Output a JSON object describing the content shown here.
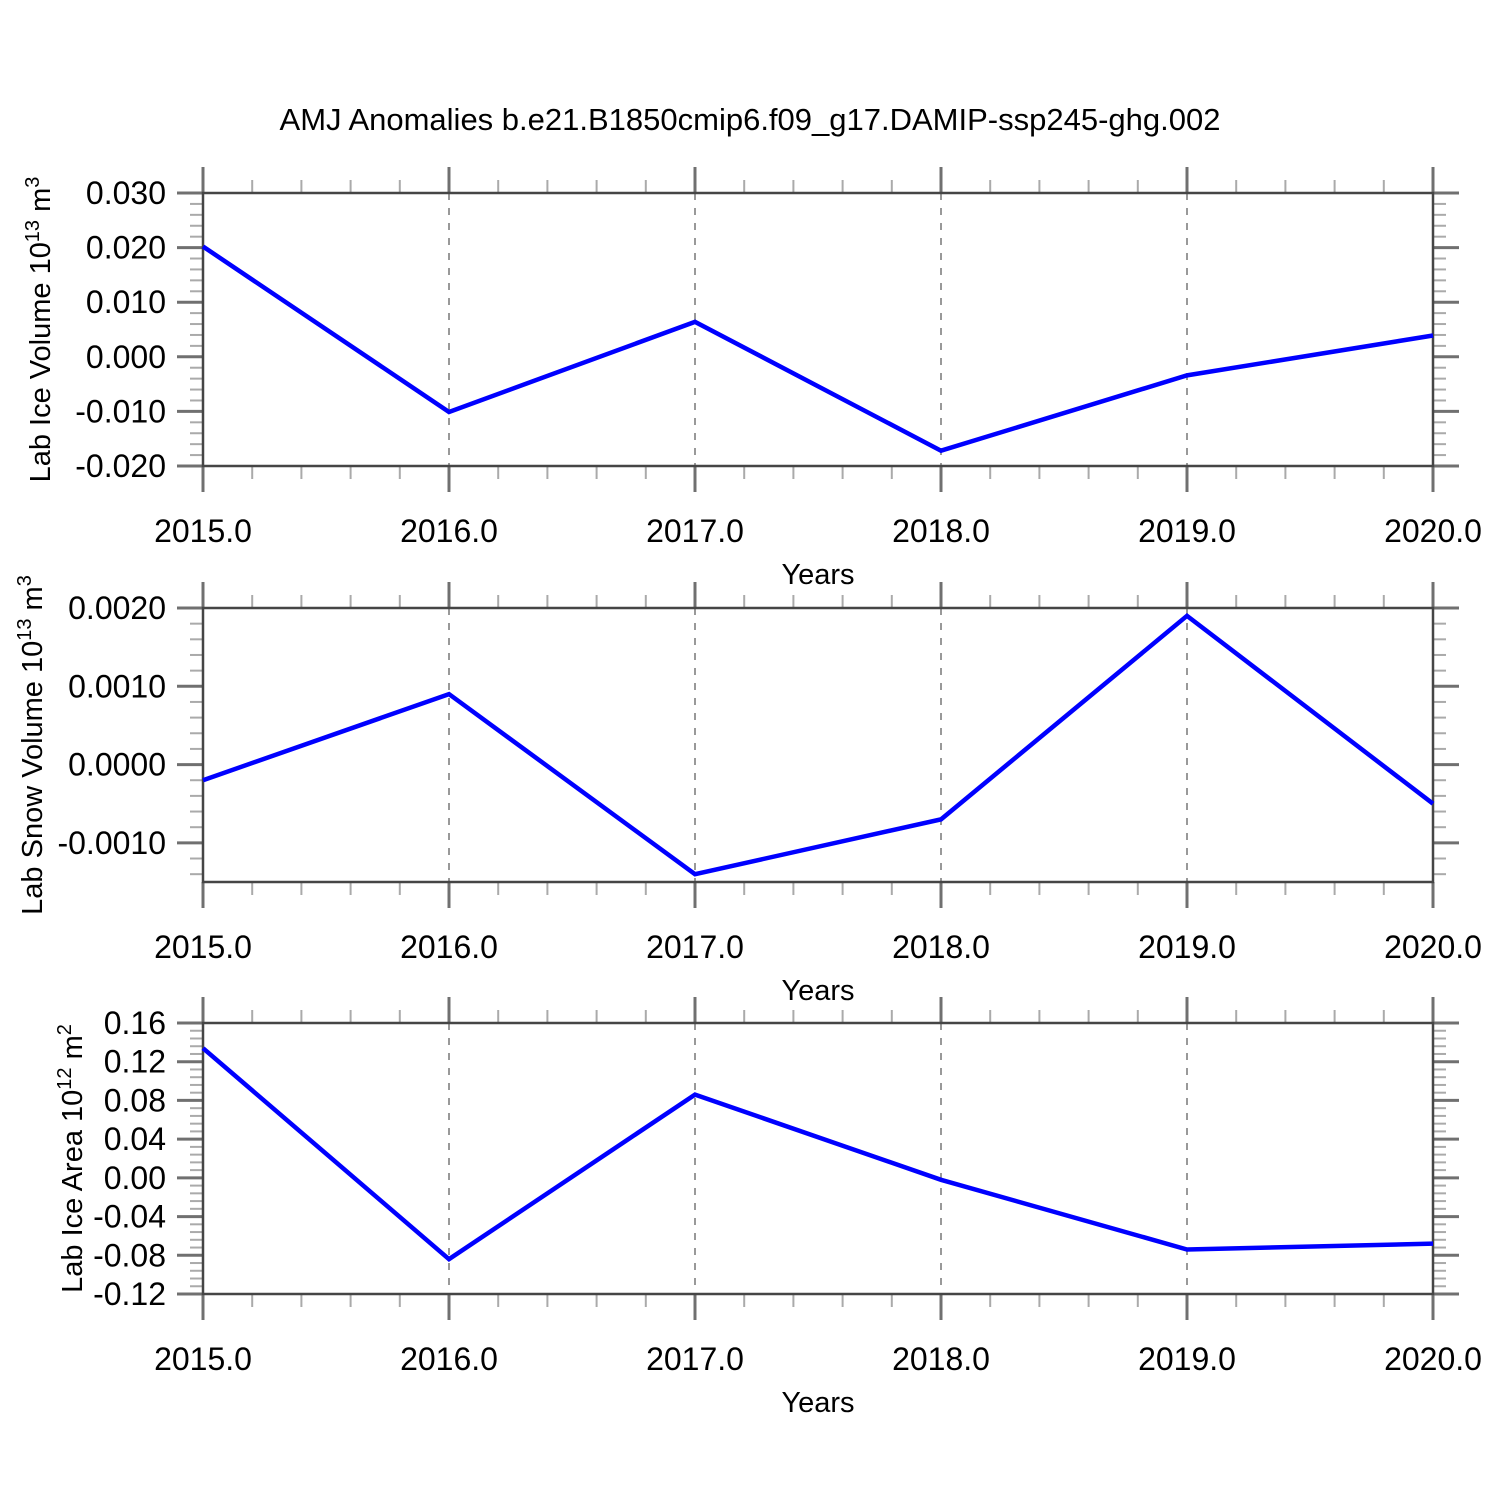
{
  "title": "AMJ Anomalies b.e21.B1850cmip6.f09_g17.DAMIP-ssp245-ghg.002",
  "colors": {
    "background": "#ffffff",
    "line": "#0000ff",
    "frame": "#454545",
    "major_tick": "#707070",
    "minor_tick": "#aaaaaa",
    "grid": "#999999",
    "text": "#000000"
  },
  "chart_data": [
    {
      "type": "line",
      "name": "lab-ice-volume",
      "ylabel": "Lab Ice Volume 10^13 m^3",
      "ylabel_parts": [
        {
          "text": "Lab Ice Volume 10"
        },
        {
          "text": "13",
          "sup": true
        },
        {
          "text": " m"
        },
        {
          "text": "3",
          "sup": true
        }
      ],
      "xlabel": "Years",
      "x": [
        2015,
        2016,
        2017,
        2018,
        2019,
        2020
      ],
      "values": [
        0.0202,
        -0.0101,
        0.0064,
        -0.0172,
        -0.0034,
        0.0039
      ],
      "xlim": [
        2015,
        2020
      ],
      "ylim": [
        -0.02,
        0.03
      ],
      "xticks": [
        2015,
        2016,
        2017,
        2018,
        2019,
        2020
      ],
      "xtick_labels": [
        "2015.0",
        "2016.0",
        "2017.0",
        "2018.0",
        "2019.0",
        "2020.0"
      ],
      "yticks": [
        0.03,
        0.02,
        0.01,
        0,
        -0.01,
        -0.02
      ],
      "ytick_labels": [
        "0.030",
        "0.020",
        "0.010",
        "0.000",
        "-0.010",
        "-0.020"
      ],
      "x_minor_step": 0.2,
      "y_minor_step": 0.002,
      "grid_x": [
        2016,
        2017,
        2018,
        2019
      ],
      "grid": "vertical-dashed",
      "legend": "none"
    },
    {
      "type": "line",
      "name": "lab-snow-volume",
      "ylabel": "Lab Snow Volume 10^13 m^3",
      "ylabel_parts": [
        {
          "text": "Lab Snow Volume 10"
        },
        {
          "text": "13",
          "sup": true
        },
        {
          "text": " m"
        },
        {
          "text": "3",
          "sup": true
        }
      ],
      "xlabel": "Years",
      "x": [
        2015,
        2016,
        2017,
        2018,
        2019,
        2020
      ],
      "values": [
        -0.0002,
        0.0009,
        -0.0014,
        -0.0007,
        0.0019,
        -0.0005
      ],
      "xlim": [
        2015,
        2020
      ],
      "ylim": [
        -0.0015,
        0.002
      ],
      "xticks": [
        2015,
        2016,
        2017,
        2018,
        2019,
        2020
      ],
      "xtick_labels": [
        "2015.0",
        "2016.0",
        "2017.0",
        "2018.0",
        "2019.0",
        "2020.0"
      ],
      "yticks": [
        0.002,
        0.001,
        0,
        -0.001
      ],
      "ytick_labels": [
        "0.0020",
        "0.0010",
        "0.0000",
        "-0.0010"
      ],
      "x_minor_step": 0.2,
      "y_minor_step": 0.0002,
      "grid_x": [
        2016,
        2017,
        2018,
        2019
      ],
      "grid": "vertical-dashed",
      "legend": "none"
    },
    {
      "type": "line",
      "name": "lab-ice-area",
      "ylabel": "Lab Ice Area 10^12 m^2",
      "ylabel_parts": [
        {
          "text": "Lab Ice Area 10"
        },
        {
          "text": "12",
          "sup": true
        },
        {
          "text": " m"
        },
        {
          "text": "2",
          "sup": true
        }
      ],
      "xlabel": "Years",
      "x": [
        2015,
        2016,
        2017,
        2018,
        2019,
        2020
      ],
      "values": [
        0.134,
        -0.084,
        0.086,
        -0.002,
        -0.074,
        -0.068
      ],
      "xlim": [
        2015,
        2020
      ],
      "ylim": [
        -0.12,
        0.16
      ],
      "xticks": [
        2015,
        2016,
        2017,
        2018,
        2019,
        2020
      ],
      "xtick_labels": [
        "2015.0",
        "2016.0",
        "2017.0",
        "2018.0",
        "2019.0",
        "2020.0"
      ],
      "yticks": [
        0.16,
        0.12,
        0.08,
        0.04,
        0,
        -0.04,
        -0.08,
        -0.12
      ],
      "ytick_labels": [
        "0.16",
        "0.12",
        "0.08",
        "0.04",
        "0.00",
        "-0.04",
        "-0.08",
        "-0.12"
      ],
      "x_minor_step": 0.2,
      "y_minor_step": 0.008,
      "grid_x": [
        2016,
        2017,
        2018,
        2019
      ],
      "grid": "vertical-dashed",
      "legend": "none"
    }
  ]
}
